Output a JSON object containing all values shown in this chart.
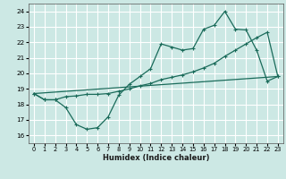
{
  "xlabel": "Humidex (Indice chaleur)",
  "bg_color": "#cce8e4",
  "grid_color": "#b0d8d4",
  "line_color": "#1a6b5a",
  "xlim": [
    -0.5,
    23.5
  ],
  "ylim": [
    15.5,
    24.5
  ],
  "xticks": [
    0,
    1,
    2,
    3,
    4,
    5,
    6,
    7,
    8,
    9,
    10,
    11,
    12,
    13,
    14,
    15,
    16,
    17,
    18,
    19,
    20,
    21,
    22,
    23
  ],
  "yticks": [
    16,
    17,
    18,
    19,
    20,
    21,
    22,
    23,
    24
  ],
  "line1_x": [
    0,
    1,
    2,
    3,
    4,
    5,
    6,
    7,
    8,
    9,
    10,
    11,
    12,
    13,
    14,
    15,
    16,
    17,
    18,
    19,
    20,
    21,
    22,
    23
  ],
  "line1_y": [
    18.7,
    18.3,
    18.3,
    17.8,
    16.7,
    16.4,
    16.5,
    17.2,
    18.6,
    19.3,
    19.8,
    20.3,
    21.9,
    21.7,
    21.5,
    21.6,
    22.85,
    23.1,
    24.0,
    22.85,
    22.8,
    21.5,
    19.5,
    19.8
  ],
  "line2_x": [
    0,
    1,
    2,
    3,
    4,
    5,
    6,
    7,
    8,
    9,
    10,
    11,
    12,
    13,
    14,
    15,
    16,
    17,
    18,
    19,
    20,
    21,
    22,
    23
  ],
  "line2_y": [
    18.7,
    18.3,
    18.3,
    18.5,
    18.55,
    18.65,
    18.65,
    18.7,
    18.85,
    19.0,
    19.2,
    19.35,
    19.6,
    19.75,
    19.9,
    20.1,
    20.35,
    20.65,
    21.1,
    21.5,
    21.9,
    22.3,
    22.65,
    19.8
  ],
  "line3_x": [
    0,
    23
  ],
  "line3_y": [
    18.7,
    19.8
  ]
}
